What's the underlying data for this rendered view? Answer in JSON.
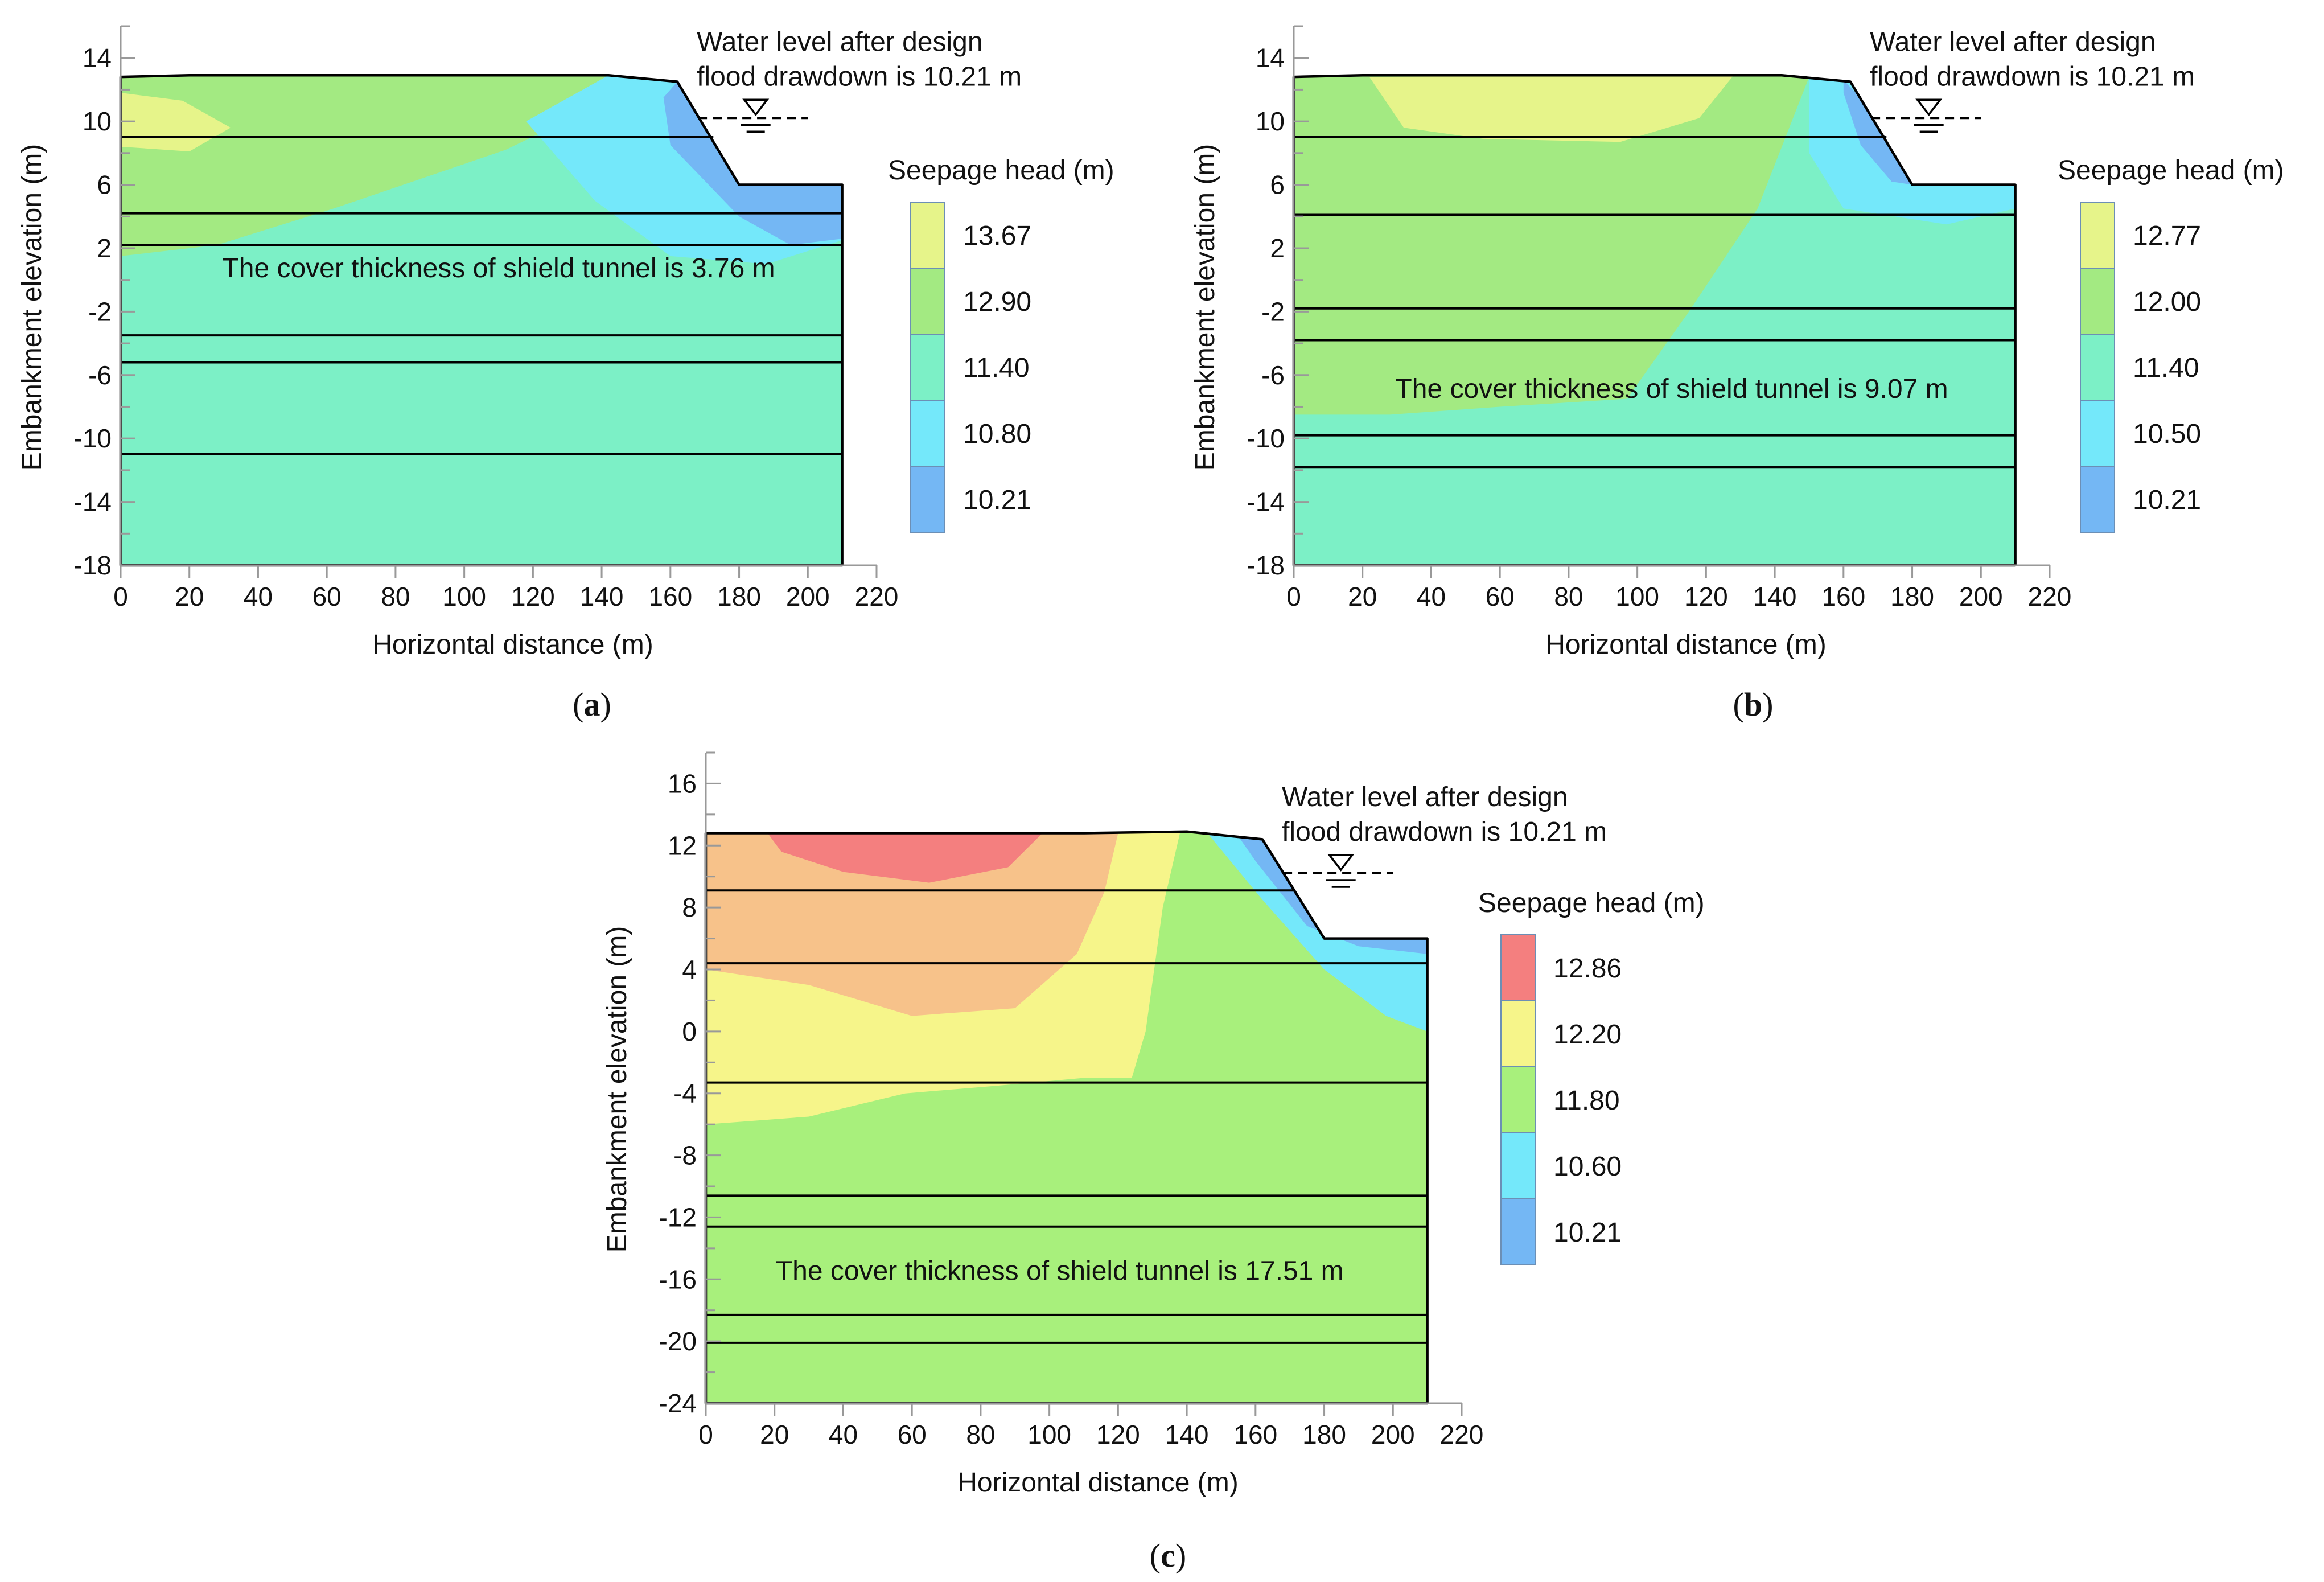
{
  "figure": {
    "panels": [
      "a",
      "b",
      "c"
    ]
  },
  "chart_data": [
    {
      "id": "a",
      "panel_label": "a",
      "type": "heatmap",
      "subtype": "filled seepage-head contour over embankment cross-section",
      "xlabel": "Horizontal distance (m)",
      "ylabel": "Embankment  elevation  (m)",
      "xlim": [
        0,
        220
      ],
      "ylim": [
        -18,
        16
      ],
      "xticks": [
        0,
        20,
        40,
        60,
        80,
        100,
        120,
        140,
        160,
        180,
        200,
        220
      ],
      "yticks": [
        14,
        10,
        6,
        2,
        -2,
        -6,
        -10,
        -14,
        -18
      ],
      "annotation": {
        "line1": "Water level after design",
        "line2": "flood drawdown  is 10.21 m",
        "water_level": 10.21,
        "marker_x": [
          168,
          200
        ]
      },
      "note": "The cover thickness of shield tunnel  is 3.76 m",
      "note_pos": [
        110,
        0.7
      ],
      "legend": {
        "title": "Seepage head  (m)",
        "labels": [
          "13.67",
          "12.90",
          "11.40",
          "10.80",
          "10.21"
        ],
        "colors": [
          "#e6f48a",
          "#a3ea82",
          "#7cf0c6",
          "#74e8fa",
          "#74b7f4"
        ]
      },
      "outline": [
        [
          0,
          12.8
        ],
        [
          20,
          12.9
        ],
        [
          90,
          12.9
        ],
        [
          142,
          12.9
        ],
        [
          162,
          12.5
        ],
        [
          180,
          6
        ],
        [
          210,
          6
        ],
        [
          210,
          -18
        ],
        [
          0,
          -18
        ]
      ],
      "layer_boundaries": [
        {
          "elev": 9,
          "x_end": 172.5
        },
        {
          "elev": 4.2,
          "x_end": 210
        },
        {
          "elev": 2.2,
          "x_end": 210
        },
        {
          "elev": -3.5,
          "x_end": 210
        },
        {
          "elev": -5.2,
          "x_end": 210
        },
        {
          "elev": -11,
          "x_end": 210
        }
      ],
      "base_color": "#7cf0c6",
      "zones": [
        {
          "color": "#a3ea82",
          "points": [
            [
              0,
              12.8
            ],
            [
              90,
              12.9
            ],
            [
              142,
              12.9
            ],
            [
              155,
              12.7
            ],
            [
              112,
              8.2
            ],
            [
              62,
              4.5
            ],
            [
              28,
              2.2
            ],
            [
              0,
              1.5
            ]
          ]
        },
        {
          "color": "#e6f48a",
          "points": [
            [
              0,
              11.8
            ],
            [
              18,
              11.3
            ],
            [
              32,
              9.6
            ],
            [
              20,
              8.1
            ],
            [
              0,
              8.4
            ]
          ]
        },
        {
          "color": "#74e8fa",
          "points": [
            [
              142,
              12.9
            ],
            [
              162,
              12.5
            ],
            [
              180,
              6
            ],
            [
              210,
              6
            ],
            [
              210,
              2.5
            ],
            [
              188,
              1
            ],
            [
              160,
              1.5
            ],
            [
              138,
              5
            ],
            [
              118,
              10
            ]
          ]
        },
        {
          "color": "#74b7f4",
          "points": [
            [
              162,
              12.5
            ],
            [
              180,
              6
            ],
            [
              210,
              6
            ],
            [
              210,
              2.6
            ],
            [
              195,
              2.2
            ],
            [
              180,
              4
            ],
            [
              160,
              8.5
            ],
            [
              158,
              11.5
            ]
          ]
        }
      ]
    },
    {
      "id": "b",
      "panel_label": "b",
      "type": "heatmap",
      "subtype": "filled seepage-head contour over embankment cross-section",
      "xlabel": "Horizontal distance (m)",
      "ylabel": "Embankment  elevation  (m)",
      "xlim": [
        0,
        220
      ],
      "ylim": [
        -18,
        16
      ],
      "xticks": [
        0,
        20,
        40,
        60,
        80,
        100,
        120,
        140,
        160,
        180,
        200,
        220
      ],
      "yticks": [
        14,
        10,
        6,
        2,
        -2,
        -6,
        -10,
        -14,
        -18
      ],
      "annotation": {
        "line1": "Water level after design",
        "line2": "flood drawdown  is 10.21 m",
        "water_level": 10.21,
        "marker_x": [
          168,
          200
        ]
      },
      "note": "The cover thickness of shield tunnel  is 9.07 m",
      "note_pos": [
        110,
        -6.9
      ],
      "legend": {
        "title": "Seepage head  (m)",
        "labels": [
          "12.77",
          "12.00",
          "11.40",
          "10.50",
          "10.21"
        ],
        "colors": [
          "#e6f48a",
          "#a3ea82",
          "#7cf0c6",
          "#74e8fa",
          "#74b7f4"
        ]
      },
      "outline": [
        [
          0,
          12.8
        ],
        [
          20,
          12.9
        ],
        [
          90,
          12.9
        ],
        [
          142,
          12.9
        ],
        [
          162,
          12.5
        ],
        [
          180,
          6
        ],
        [
          210,
          6
        ],
        [
          210,
          -18
        ],
        [
          0,
          -18
        ]
      ],
      "layer_boundaries": [
        {
          "elev": 9,
          "x_end": 172.5
        },
        {
          "elev": 4.1,
          "x_end": 210
        },
        {
          "elev": -1.8,
          "x_end": 210
        },
        {
          "elev": -3.8,
          "x_end": 210
        },
        {
          "elev": -9.8,
          "x_end": 210
        },
        {
          "elev": -11.8,
          "x_end": 210
        }
      ],
      "base_color": "#7cf0c6",
      "zones": [
        {
          "color": "#a3ea82",
          "points": [
            [
              0,
              12.8
            ],
            [
              90,
              12.9
            ],
            [
              142,
              12.9
            ],
            [
              150,
              12.8
            ],
            [
              135,
              4.5
            ],
            [
              115,
              -2
            ],
            [
              97,
              -7.5
            ],
            [
              60,
              -8
            ],
            [
              28,
              -8.5
            ],
            [
              0,
              -8.5
            ]
          ]
        },
        {
          "color": "#e6f48a",
          "points": [
            [
              22,
              12.8
            ],
            [
              110,
              12.9
            ],
            [
              128,
              12.9
            ],
            [
              118,
              10.2
            ],
            [
              95,
              8.7
            ],
            [
              55,
              8.9
            ],
            [
              32,
              9.6
            ]
          ]
        },
        {
          "color": "#74e8fa",
          "points": [
            [
              150,
              12.8
            ],
            [
              162,
              12.5
            ],
            [
              180,
              6
            ],
            [
              210,
              6
            ],
            [
              210,
              4.5
            ],
            [
              190,
              3.5
            ],
            [
              160,
              4.5
            ],
            [
              150,
              8
            ]
          ]
        },
        {
          "color": "#74b7f4",
          "points": [
            [
              160,
              12.6
            ],
            [
              168,
              10.8
            ],
            [
              180,
              6
            ],
            [
              174,
              6.2
            ],
            [
              165,
              8.5
            ],
            [
              160,
              11.8
            ]
          ]
        }
      ]
    },
    {
      "id": "c",
      "panel_label": "c",
      "type": "heatmap",
      "subtype": "filled seepage-head contour over embankment cross-section",
      "xlabel": "Horizontal distance (m)",
      "ylabel": "Embankment  elevation  (m)",
      "xlim": [
        0,
        220
      ],
      "ylim": [
        -24,
        18
      ],
      "xticks": [
        0,
        20,
        40,
        60,
        80,
        100,
        120,
        140,
        160,
        180,
        200,
        220
      ],
      "yticks": [
        16,
        12,
        8,
        4,
        0,
        -4,
        -8,
        -12,
        -16,
        -20,
        -24
      ],
      "annotation": {
        "line1": "Water level after design",
        "line2": "flood drawdown  is 10.21 m",
        "water_level": 10.21,
        "marker_x": [
          168,
          200
        ]
      },
      "note": "The cover thickness of shield tunnel  is 17.51 m",
      "note_pos": [
        103,
        -15.5
      ],
      "legend": {
        "title": "Seepage head  (m)",
        "labels": [
          "12.86",
          "12.20",
          "11.80",
          "10.60",
          "10.21"
        ],
        "colors": [
          "#f47f7f",
          "#f6f58a",
          "#a8f07c",
          "#74e8fa",
          "#74b7f4"
        ]
      },
      "outline": [
        [
          0,
          12.8
        ],
        [
          20,
          12.8
        ],
        [
          110,
          12.8
        ],
        [
          140,
          12.9
        ],
        [
          162,
          12.4
        ],
        [
          180,
          6
        ],
        [
          210,
          6
        ],
        [
          210,
          -24
        ],
        [
          0,
          -24
        ]
      ],
      "layer_boundaries": [
        {
          "elev": 9.1,
          "x_end": 171.5
        },
        {
          "elev": 4.4,
          "x_end": 210
        },
        {
          "elev": -3.3,
          "x_end": 210
        },
        {
          "elev": -10.6,
          "x_end": 210
        },
        {
          "elev": -12.6,
          "x_end": 210
        },
        {
          "elev": -18.3,
          "x_end": 210
        },
        {
          "elev": -20.1,
          "x_end": 210
        }
      ],
      "base_color": "#a8f07c",
      "zones": [
        {
          "color": "#f6f58a",
          "points": [
            [
              0,
              12.8
            ],
            [
              138,
              12.8
            ],
            [
              133,
              8
            ],
            [
              128,
              0
            ],
            [
              124,
              -3
            ],
            [
              110,
              -3
            ],
            [
              85,
              -3.5
            ],
            [
              58,
              -4
            ],
            [
              30,
              -5.5
            ],
            [
              0,
              -6
            ]
          ]
        },
        {
          "color": "#f7c28a",
          "points": [
            [
              0,
              12.8
            ],
            [
              120,
              12.8
            ],
            [
              116,
              9
            ],
            [
              108,
              5
            ],
            [
              90,
              1.5
            ],
            [
              60,
              1
            ],
            [
              30,
              3
            ],
            [
              0,
              4
            ]
          ]
        },
        {
          "color": "#f47f7f",
          "points": [
            [
              18,
              12.8
            ],
            [
              98,
              12.8
            ],
            [
              88,
              10.6
            ],
            [
              65,
              9.6
            ],
            [
              40,
              10.3
            ],
            [
              22,
              11.6
            ]
          ]
        },
        {
          "color": "#74e8fa",
          "points": [
            [
              146,
              12.8
            ],
            [
              162,
              12.4
            ],
            [
              180,
              6
            ],
            [
              210,
              6
            ],
            [
              210,
              0
            ],
            [
              198,
              1
            ],
            [
              180,
              4
            ],
            [
              162,
              8.5
            ]
          ]
        },
        {
          "color": "#74b7f4",
          "points": [
            [
              155,
              12.6
            ],
            [
              162,
              12.4
            ],
            [
              180,
              6
            ],
            [
              210,
              6
            ],
            [
              210,
              5
            ],
            [
              190,
              5.5
            ],
            [
              175,
              6.8
            ],
            [
              160,
              11
            ]
          ]
        }
      ]
    }
  ]
}
